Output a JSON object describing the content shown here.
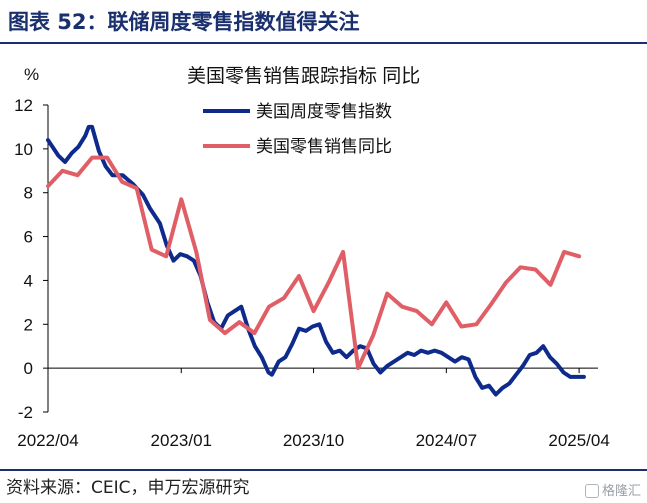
{
  "figure_title": "图表 52：联储周度零售指数值得关注",
  "source": "资料来源：CEIC，申万宏源研究",
  "watermark": "格隆汇",
  "colors": {
    "series1": "#0d2a8c",
    "series2": "#e05f67",
    "header": "#1a2f6e"
  },
  "chart_data": {
    "type": "line",
    "title": "美国零售销售跟踪指标 同比",
    "ylabel": "%",
    "xlabel": "",
    "ylim": [
      -2,
      12
    ],
    "yticks": [
      -2,
      0,
      2,
      4,
      6,
      8,
      10,
      12
    ],
    "xlim": [
      "2022-04-01",
      "2025-05-10"
    ],
    "xticks": [
      {
        "date": "2022-04-01",
        "label": "2022/04"
      },
      {
        "date": "2023-01-01",
        "label": "2023/01"
      },
      {
        "date": "2023-10-01",
        "label": "2023/10"
      },
      {
        "date": "2024-07-01",
        "label": "2024/07"
      },
      {
        "date": "2025-04-01",
        "label": "2025/04"
      }
    ],
    "legend_position": "top-center",
    "grid": false,
    "series": [
      {
        "name": "美国周度零售指数",
        "color": "#0d2a8c",
        "points": [
          [
            "2022-04-01",
            10.4
          ],
          [
            "2022-04-22",
            9.7
          ],
          [
            "2022-05-06",
            9.4
          ],
          [
            "2022-05-20",
            9.8
          ],
          [
            "2022-06-03",
            10.1
          ],
          [
            "2022-06-17",
            10.6
          ],
          [
            "2022-06-24",
            11.0
          ],
          [
            "2022-07-01",
            11.0
          ],
          [
            "2022-07-15",
            9.9
          ],
          [
            "2022-07-29",
            9.2
          ],
          [
            "2022-08-12",
            8.8
          ],
          [
            "2022-09-02",
            8.8
          ],
          [
            "2022-09-23",
            8.4
          ],
          [
            "2022-10-14",
            7.9
          ],
          [
            "2022-10-28",
            7.3
          ],
          [
            "2022-11-18",
            6.6
          ],
          [
            "2022-12-02",
            5.6
          ],
          [
            "2022-12-16",
            4.9
          ],
          [
            "2022-12-30",
            5.2
          ],
          [
            "2023-01-13",
            5.1
          ],
          [
            "2023-01-27",
            4.9
          ],
          [
            "2023-02-10",
            4.2
          ],
          [
            "2023-02-24",
            3.0
          ],
          [
            "2023-03-10",
            2.1
          ],
          [
            "2023-03-24",
            1.8
          ],
          [
            "2023-04-07",
            2.4
          ],
          [
            "2023-04-21",
            2.6
          ],
          [
            "2023-05-05",
            2.8
          ],
          [
            "2023-05-19",
            1.8
          ],
          [
            "2023-06-02",
            1.0
          ],
          [
            "2023-06-16",
            0.5
          ],
          [
            "2023-06-30",
            -0.2
          ],
          [
            "2023-07-07",
            -0.3
          ],
          [
            "2023-07-21",
            0.3
          ],
          [
            "2023-08-04",
            0.5
          ],
          [
            "2023-08-18",
            1.1
          ],
          [
            "2023-09-01",
            1.8
          ],
          [
            "2023-09-15",
            1.7
          ],
          [
            "2023-09-29",
            1.9
          ],
          [
            "2023-10-13",
            2.0
          ],
          [
            "2023-10-27",
            1.2
          ],
          [
            "2023-11-10",
            0.7
          ],
          [
            "2023-11-24",
            0.8
          ],
          [
            "2023-12-08",
            0.5
          ],
          [
            "2023-12-22",
            0.8
          ],
          [
            "2024-01-05",
            1.0
          ],
          [
            "2024-01-19",
            0.9
          ],
          [
            "2024-02-02",
            0.2
          ],
          [
            "2024-02-16",
            -0.2
          ],
          [
            "2024-03-01",
            0.1
          ],
          [
            "2024-03-15",
            0.3
          ],
          [
            "2024-03-29",
            0.5
          ],
          [
            "2024-04-12",
            0.7
          ],
          [
            "2024-04-26",
            0.6
          ],
          [
            "2024-05-10",
            0.8
          ],
          [
            "2024-05-24",
            0.7
          ],
          [
            "2024-06-07",
            0.8
          ],
          [
            "2024-06-21",
            0.7
          ],
          [
            "2024-07-05",
            0.5
          ],
          [
            "2024-07-19",
            0.3
          ],
          [
            "2024-08-02",
            0.5
          ],
          [
            "2024-08-16",
            0.4
          ],
          [
            "2024-08-30",
            -0.4
          ],
          [
            "2024-09-13",
            -0.9
          ],
          [
            "2024-09-27",
            -0.8
          ],
          [
            "2024-10-11",
            -1.2
          ],
          [
            "2024-10-25",
            -0.9
          ],
          [
            "2024-11-08",
            -0.7
          ],
          [
            "2024-11-22",
            -0.3
          ],
          [
            "2024-12-06",
            0.1
          ],
          [
            "2024-12-20",
            0.6
          ],
          [
            "2025-01-03",
            0.7
          ],
          [
            "2025-01-17",
            1.0
          ],
          [
            "2025-01-31",
            0.5
          ],
          [
            "2025-02-14",
            0.2
          ],
          [
            "2025-02-28",
            -0.2
          ],
          [
            "2025-03-14",
            -0.4
          ],
          [
            "2025-03-28",
            -0.4
          ],
          [
            "2025-04-11",
            -0.4
          ]
        ]
      },
      {
        "name": "美国零售销售同比",
        "color": "#e05f67",
        "points": [
          [
            "2022-04-01",
            8.3
          ],
          [
            "2022-05-01",
            9.0
          ],
          [
            "2022-06-01",
            8.8
          ],
          [
            "2022-07-01",
            9.6
          ],
          [
            "2022-08-01",
            9.6
          ],
          [
            "2022-09-01",
            8.5
          ],
          [
            "2022-10-01",
            8.2
          ],
          [
            "2022-11-01",
            5.4
          ],
          [
            "2022-12-01",
            5.1
          ],
          [
            "2023-01-01",
            7.7
          ],
          [
            "2023-02-01",
            5.3
          ],
          [
            "2023-03-01",
            2.2
          ],
          [
            "2023-04-01",
            1.6
          ],
          [
            "2023-05-01",
            2.1
          ],
          [
            "2023-06-01",
            1.6
          ],
          [
            "2023-07-01",
            2.8
          ],
          [
            "2023-08-01",
            3.2
          ],
          [
            "2023-09-01",
            4.2
          ],
          [
            "2023-10-01",
            2.6
          ],
          [
            "2023-11-01",
            3.9
          ],
          [
            "2023-12-01",
            5.3
          ],
          [
            "2024-01-01",
            0.0
          ],
          [
            "2024-02-01",
            1.5
          ],
          [
            "2024-03-01",
            3.4
          ],
          [
            "2024-04-01",
            2.8
          ],
          [
            "2024-05-01",
            2.6
          ],
          [
            "2024-06-01",
            2.0
          ],
          [
            "2024-07-01",
            3.0
          ],
          [
            "2024-08-01",
            1.9
          ],
          [
            "2024-09-01",
            2.0
          ],
          [
            "2024-10-01",
            2.9
          ],
          [
            "2024-11-01",
            3.9
          ],
          [
            "2024-12-01",
            4.6
          ],
          [
            "2025-01-01",
            4.5
          ],
          [
            "2025-02-01",
            3.8
          ],
          [
            "2025-03-01",
            5.3
          ],
          [
            "2025-04-01",
            5.1
          ]
        ]
      }
    ]
  }
}
